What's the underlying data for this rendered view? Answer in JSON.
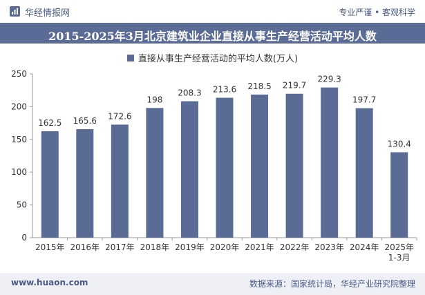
{
  "header": {
    "brand": "华经情报网",
    "tagline": "专业严谨 • 客观科学",
    "logo_icon": "huajing-logo-icon"
  },
  "chart_data": {
    "type": "bar",
    "title": "2015-2025年3月北京建筑业企业直接从事生产经营活动平均人数",
    "legend": [
      "直接从事生产经营活动的平均人数(万人)"
    ],
    "legend_placement": "top",
    "categories": [
      "2015年",
      "2016年",
      "2017年",
      "2018年",
      "2019年",
      "2020年",
      "2021年",
      "2022年",
      "2023年",
      "2024年",
      "2025年\n1-3月"
    ],
    "series": [
      {
        "name": "直接从事生产经营活动的平均人数(万人)",
        "values": [
          162.5,
          165.6,
          172.6,
          198,
          208.3,
          213.6,
          218.5,
          219.7,
          229.3,
          197.7,
          130.4
        ],
        "labels": [
          "162.5",
          "165.6",
          "172.6",
          "198",
          "208.3",
          "213.6",
          "218.5",
          "219.7",
          "229.3",
          "197.7",
          "130.4"
        ]
      }
    ],
    "ylim": [
      0,
      250
    ],
    "yticks": [
      "0",
      "50",
      "100",
      "150",
      "200",
      "250"
    ],
    "grid": false,
    "bar_color": "#5a6b96"
  },
  "footer": {
    "url": "www.huaon.com",
    "source": "数据来源：国家统计局，华经产业研究院整理"
  }
}
